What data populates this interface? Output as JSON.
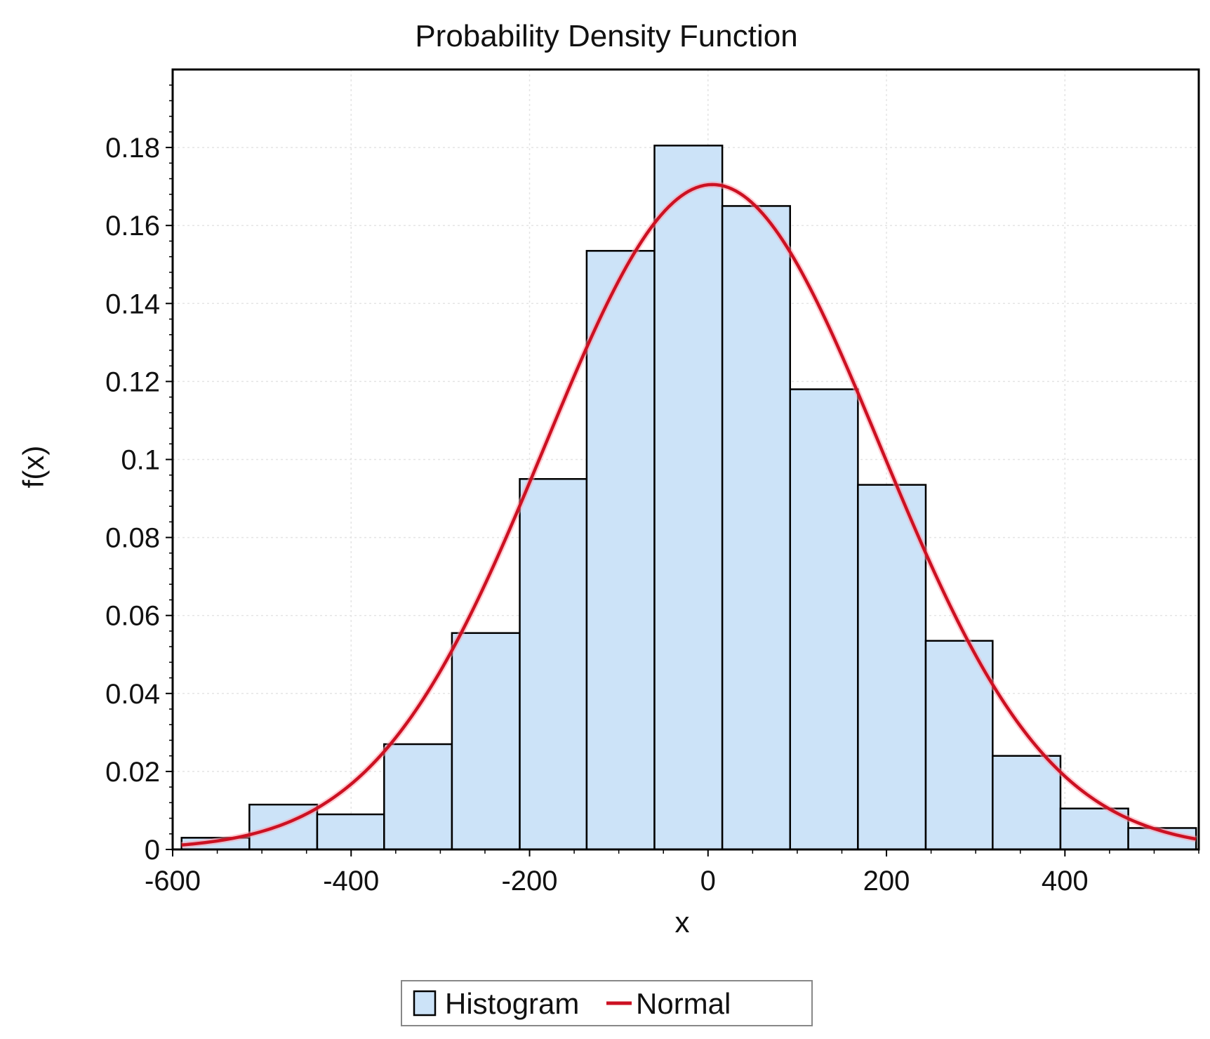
{
  "chart_data": {
    "type": "bar",
    "title": "Probability Density Function",
    "xlabel": "x",
    "ylabel": "f(x)",
    "xlim": [
      -600,
      550
    ],
    "ylim": [
      0,
      0.2
    ],
    "x_ticks": [
      -600,
      -400,
      -200,
      0,
      200,
      400
    ],
    "x_tick_labels": [
      "-600",
      "-400",
      "-200",
      "0",
      "200",
      "400"
    ],
    "y_ticks": [
      0,
      0.02,
      0.04,
      0.06,
      0.08,
      0.1,
      0.12,
      0.14,
      0.16,
      0.18
    ],
    "y_tick_labels": [
      "0",
      "0.02",
      "0.04",
      "0.06",
      "0.08",
      "0.1",
      "0.12",
      "0.14",
      "0.16",
      "0.18"
    ],
    "grid": true,
    "legend_position": "bottom-center",
    "series": [
      {
        "name": "Histogram",
        "kind": "histogram",
        "color": "#cce3f8",
        "edge_color": "#000000",
        "bin_edges": [
          -590,
          -514,
          -438,
          -363,
          -287,
          -211,
          -136,
          -60,
          16,
          92,
          168,
          244,
          319,
          395,
          471,
          547
        ],
        "values": [
          0.003,
          0.0115,
          0.009,
          0.027,
          0.0555,
          0.095,
          0.1535,
          0.1805,
          0.165,
          0.118,
          0.0935,
          0.0535,
          0.024,
          0.0105,
          0.0055
        ]
      },
      {
        "name": "Normal",
        "kind": "line",
        "color": "#cc1122",
        "mean": 5,
        "std": 188,
        "peak": 0.1705,
        "x_range": [
          -590,
          547
        ]
      }
    ],
    "legend": {
      "items": [
        {
          "label": "Histogram",
          "swatch": "box"
        },
        {
          "label": "Normal",
          "swatch": "line"
        }
      ]
    }
  }
}
